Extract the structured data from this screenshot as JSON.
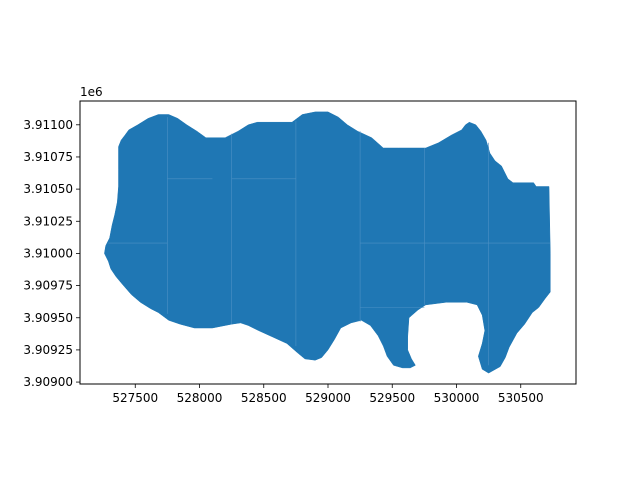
{
  "chart_data": {
    "type": "geo-polygon",
    "offset_text": "1e6",
    "xlim": [
      527070,
      530930
    ],
    "ylim": [
      3908985,
      3911185
    ],
    "fill_color": "#1f77b4",
    "edge_color": "#4d91c5",
    "x_ticks": [
      {
        "value": 527500,
        "label": "527500"
      },
      {
        "value": 528000,
        "label": "528000"
      },
      {
        "value": 528500,
        "label": "528500"
      },
      {
        "value": 529000,
        "label": "529000"
      },
      {
        "value": 529500,
        "label": "529500"
      },
      {
        "value": 530000,
        "label": "530000"
      },
      {
        "value": 530500,
        "label": "530500"
      }
    ],
    "y_ticks": [
      {
        "value": 3909000,
        "label": "3.90900"
      },
      {
        "value": 3909250,
        "label": "3.90925"
      },
      {
        "value": 3909500,
        "label": "3.90950"
      },
      {
        "value": 3909750,
        "label": "3.90975"
      },
      {
        "value": 3910000,
        "label": "3.91000"
      },
      {
        "value": 3910250,
        "label": "3.91025"
      },
      {
        "value": 3910500,
        "label": "3.91050"
      },
      {
        "value": 3910750,
        "label": "3.91075"
      },
      {
        "value": 3911000,
        "label": "3.91100"
      }
    ],
    "polygon": [
      [
        527370,
        3910830
      ],
      [
        527390,
        3910880
      ],
      [
        527420,
        3910920
      ],
      [
        527450,
        3910960
      ],
      [
        527520,
        3911000
      ],
      [
        527600,
        3911050
      ],
      [
        527680,
        3911080
      ],
      [
        527760,
        3911080
      ],
      [
        527830,
        3911050
      ],
      [
        527900,
        3911000
      ],
      [
        527980,
        3910950
      ],
      [
        528050,
        3910900
      ],
      [
        528200,
        3910900
      ],
      [
        528300,
        3910950
      ],
      [
        528380,
        3911000
      ],
      [
        528450,
        3911020
      ],
      [
        528720,
        3911020
      ],
      [
        528800,
        3911080
      ],
      [
        528900,
        3911100
      ],
      [
        529000,
        3911100
      ],
      [
        529080,
        3911060
      ],
      [
        529150,
        3911000
      ],
      [
        529230,
        3910950
      ],
      [
        529340,
        3910900
      ],
      [
        529430,
        3910820
      ],
      [
        529550,
        3910820
      ],
      [
        529760,
        3910820
      ],
      [
        529860,
        3910860
      ],
      [
        529960,
        3910920
      ],
      [
        530040,
        3910960
      ],
      [
        530070,
        3911000
      ],
      [
        530100,
        3911020
      ],
      [
        530150,
        3911000
      ],
      [
        530190,
        3910950
      ],
      [
        530230,
        3910880
      ],
      [
        530260,
        3910780
      ],
      [
        530300,
        3910720
      ],
      [
        530350,
        3910680
      ],
      [
        530400,
        3910580
      ],
      [
        530440,
        3910550
      ],
      [
        530600,
        3910550
      ],
      [
        530620,
        3910520
      ],
      [
        530720,
        3910520
      ],
      [
        530730,
        3910000
      ],
      [
        530730,
        3909700
      ],
      [
        530690,
        3909650
      ],
      [
        530640,
        3909580
      ],
      [
        530590,
        3909540
      ],
      [
        530530,
        3909450
      ],
      [
        530470,
        3909380
      ],
      [
        530410,
        3909270
      ],
      [
        530380,
        3909190
      ],
      [
        530340,
        3909120
      ],
      [
        530250,
        3909070
      ],
      [
        530200,
        3909100
      ],
      [
        530170,
        3909200
      ],
      [
        530200,
        3909300
      ],
      [
        530220,
        3909400
      ],
      [
        530200,
        3909520
      ],
      [
        530160,
        3909600
      ],
      [
        530080,
        3909620
      ],
      [
        530000,
        3909620
      ],
      [
        529920,
        3909620
      ],
      [
        529760,
        3909600
      ],
      [
        529700,
        3909560
      ],
      [
        529630,
        3909500
      ],
      [
        529620,
        3909350
      ],
      [
        529620,
        3909250
      ],
      [
        529650,
        3909180
      ],
      [
        529680,
        3909130
      ],
      [
        529640,
        3909110
      ],
      [
        529580,
        3909110
      ],
      [
        529510,
        3909130
      ],
      [
        529460,
        3909200
      ],
      [
        529430,
        3909280
      ],
      [
        529390,
        3909360
      ],
      [
        529330,
        3909440
      ],
      [
        529260,
        3909480
      ],
      [
        529180,
        3909460
      ],
      [
        529100,
        3909420
      ],
      [
        529050,
        3909330
      ],
      [
        529000,
        3909250
      ],
      [
        528950,
        3909190
      ],
      [
        528900,
        3909170
      ],
      [
        528820,
        3909180
      ],
      [
        528760,
        3909230
      ],
      [
        528680,
        3909300
      ],
      [
        528570,
        3909350
      ],
      [
        528460,
        3909400
      ],
      [
        528380,
        3909440
      ],
      [
        528320,
        3909460
      ],
      [
        528250,
        3909450
      ],
      [
        528100,
        3909420
      ],
      [
        527960,
        3909420
      ],
      [
        527850,
        3909450
      ],
      [
        527760,
        3909480
      ],
      [
        527680,
        3909540
      ],
      [
        527620,
        3909570
      ],
      [
        527540,
        3909620
      ],
      [
        527470,
        3909680
      ],
      [
        527400,
        3909760
      ],
      [
        527350,
        3909820
      ],
      [
        527310,
        3909880
      ],
      [
        527290,
        3909940
      ],
      [
        527260,
        3910000
      ],
      [
        527270,
        3910060
      ],
      [
        527300,
        3910120
      ],
      [
        527320,
        3910220
      ],
      [
        527340,
        3910300
      ],
      [
        527360,
        3910400
      ],
      [
        527370,
        3910520
      ],
      [
        527370,
        3910650
      ],
      [
        527370,
        3910830
      ]
    ],
    "grid_lines": [
      [
        [
          527750,
          3911060
        ],
        [
          527750,
          3909530
        ]
      ],
      [
        [
          528250,
          3910930
        ],
        [
          528250,
          3909450
        ]
      ],
      [
        [
          528750,
          3911030
        ],
        [
          528750,
          3909280
        ]
      ],
      [
        [
          529250,
          3910950
        ],
        [
          529250,
          3909470
        ]
      ],
      [
        [
          529750,
          3910820
        ],
        [
          529750,
          3909600
        ]
      ],
      [
        [
          530250,
          3910860
        ],
        [
          530250,
          3909130
        ]
      ],
      [
        [
          527290,
          3910080
        ],
        [
          527750,
          3910080
        ]
      ],
      [
        [
          529250,
          3910080
        ],
        [
          530730,
          3910080
        ]
      ],
      [
        [
          527750,
          3910580
        ],
        [
          528100,
          3910580
        ]
      ],
      [
        [
          529250,
          3909580
        ],
        [
          529750,
          3909580
        ]
      ],
      [
        [
          528250,
          3910580
        ],
        [
          528750,
          3910580
        ]
      ]
    ]
  }
}
